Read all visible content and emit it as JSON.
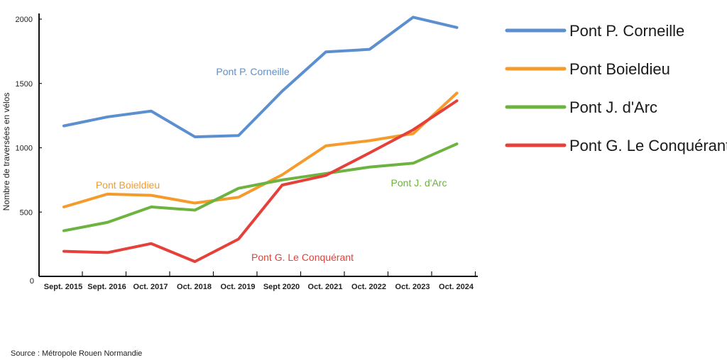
{
  "chart_data": {
    "type": "line",
    "categories": [
      "Sept. 2015",
      "Sept. 2016",
      "Oct. 2017",
      "Oct. 2018",
      "Oct. 2019",
      "Sept 2020",
      "Oct. 2021",
      "Oct. 2022",
      "Oct. 2023",
      "Oct. 2024"
    ],
    "ylabel": "Nombre de traversées en vélos",
    "xlabel": "",
    "ylim": [
      0,
      2000
    ],
    "yticks": [
      "0",
      "500",
      "1000",
      "1500",
      "2000"
    ],
    "grid": false,
    "legend_position": "right",
    "series": [
      {
        "name": "Pont P. Corneille",
        "label": "Pont P. Corneille",
        "color": "#5b8fd0",
        "values": [
          1170,
          1240,
          1285,
          1085,
          1095,
          1440,
          1745,
          1765,
          2015,
          1935
        ]
      },
      {
        "name": "Pont Boieldieu",
        "label": "Pont Boieldieu",
        "color": "#f59b2b",
        "values": [
          540,
          640,
          630,
          570,
          615,
          790,
          1015,
          1055,
          1110,
          1425
        ]
      },
      {
        "name": "Pont J. d'Arc",
        "label": "Pont J. d'Arc",
        "color": "#6cb33f",
        "values": [
          355,
          420,
          540,
          515,
          685,
          750,
          800,
          850,
          880,
          1030
        ]
      },
      {
        "name": "Pont G. Le Conquérant",
        "label": "Pont G. Le Conquérant",
        "color": "#e5403a",
        "values": [
          195,
          185,
          255,
          115,
          290,
          710,
          785,
          960,
          1140,
          1365
        ]
      }
    ]
  },
  "source": "Source : Métropole Rouen Normandie"
}
